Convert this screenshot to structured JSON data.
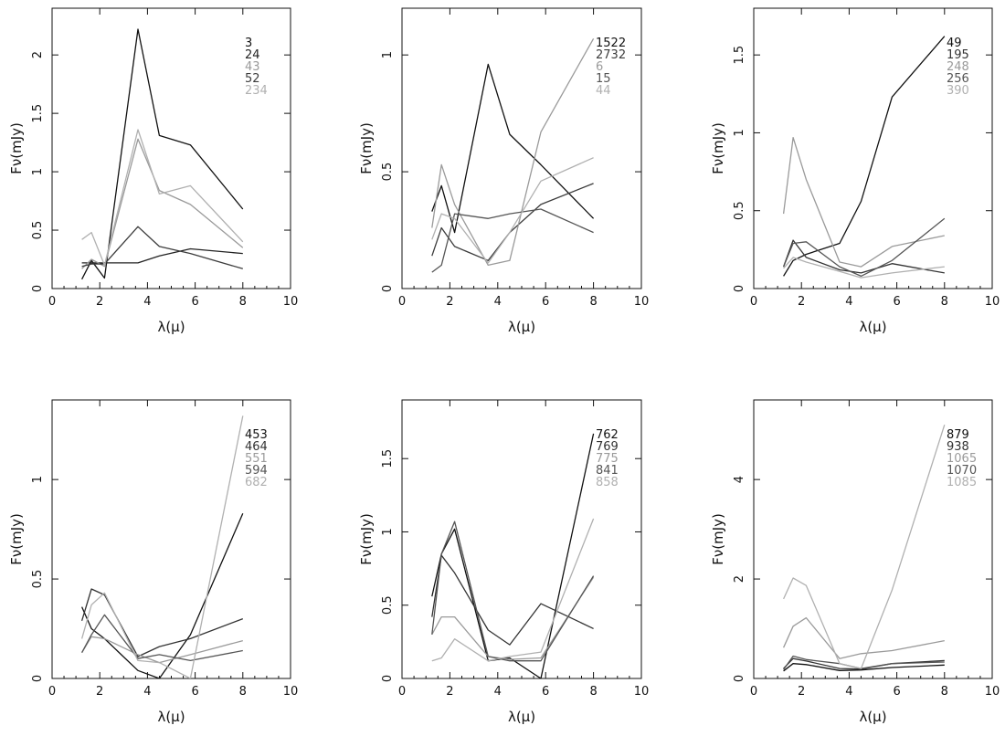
{
  "chart_data": [
    {
      "type": "line",
      "xlabel": "λ(μ)",
      "ylabel": "Fν(mJy)",
      "xlim": [
        0,
        10
      ],
      "ylim": [
        0,
        2.4
      ],
      "xticks": [
        0,
        2,
        4,
        6,
        8,
        10
      ],
      "yticks": [
        0,
        0.5,
        1,
        1.5,
        2
      ],
      "ytick_labels": [
        "0",
        "0.5",
        "1",
        "1.5",
        "2"
      ],
      "x": [
        1.25,
        1.65,
        2.2,
        3.6,
        4.5,
        5.8,
        8.0
      ],
      "series": [
        {
          "name": "3",
          "color": "#111111",
          "values": [
            0.08,
            0.24,
            0.09,
            2.22,
            1.31,
            1.23,
            0.68
          ]
        },
        {
          "name": "24",
          "color": "#222222",
          "values": [
            0.22,
            0.22,
            0.22,
            0.22,
            0.28,
            0.34,
            0.3
          ]
        },
        {
          "name": "43",
          "color": "#9a9a9a",
          "values": [
            0.17,
            0.25,
            0.19,
            1.28,
            0.84,
            0.72,
            0.35
          ]
        },
        {
          "name": "52",
          "color": "#3c3c3c",
          "values": [
            0.19,
            0.21,
            0.21,
            0.53,
            0.36,
            0.3,
            0.17
          ]
        },
        {
          "name": "234",
          "color": "#b0b0b0",
          "values": [
            0.42,
            0.48,
            0.2,
            1.36,
            0.81,
            0.88,
            0.4
          ]
        }
      ]
    },
    {
      "type": "line",
      "xlabel": "λ(μ)",
      "ylabel": "Fν(mJy)",
      "xlim": [
        0,
        10
      ],
      "ylim": [
        0,
        1.2
      ],
      "xticks": [
        0,
        2,
        4,
        6,
        8,
        10
      ],
      "yticks": [
        0,
        0.5,
        1
      ],
      "ytick_labels": [
        "0",
        "0.5",
        "1"
      ],
      "x": [
        1.25,
        1.65,
        2.2,
        3.6,
        4.5,
        5.8,
        8.0
      ],
      "series": [
        {
          "name": "1522",
          "color": "#111111",
          "values": [
            0.33,
            0.44,
            0.24,
            0.96,
            0.66,
            0.53,
            0.3
          ]
        },
        {
          "name": "2732",
          "color": "#3c3c3c",
          "values": [
            0.14,
            0.26,
            0.18,
            0.12,
            0.24,
            0.36,
            0.45
          ]
        },
        {
          "name": "6",
          "color": "#9a9a9a",
          "values": [
            0.26,
            0.53,
            0.36,
            0.1,
            0.12,
            0.67,
            1.07
          ]
        },
        {
          "name": "15",
          "color": "#555555",
          "values": [
            0.07,
            0.1,
            0.32,
            0.3,
            0.32,
            0.34,
            0.24
          ]
        },
        {
          "name": "44",
          "color": "#b0b0b0",
          "values": [
            0.21,
            0.32,
            0.3,
            0.11,
            0.24,
            0.46,
            0.56
          ]
        }
      ]
    },
    {
      "type": "line",
      "xlabel": "λ(μ)",
      "ylabel": "Fν(mJy)",
      "xlim": [
        0,
        10
      ],
      "ylim": [
        0,
        1.8
      ],
      "xticks": [
        0,
        2,
        4,
        6,
        8,
        10
      ],
      "yticks": [
        0,
        0.5,
        1,
        1.5
      ],
      "ytick_labels": [
        "0",
        "0.5",
        "1",
        "1.5"
      ],
      "x": [
        1.25,
        1.65,
        2.2,
        3.6,
        4.5,
        5.8,
        8.0
      ],
      "series": [
        {
          "name": "49",
          "color": "#111111",
          "values": [
            0.08,
            0.18,
            0.22,
            0.29,
            0.56,
            1.23,
            1.62
          ]
        },
        {
          "name": "195",
          "color": "#333333",
          "values": [
            0.14,
            0.31,
            0.2,
            0.12,
            0.1,
            0.16,
            0.1
          ]
        },
        {
          "name": "248",
          "color": "#9a9a9a",
          "values": [
            0.48,
            0.97,
            0.7,
            0.17,
            0.14,
            0.27,
            0.34
          ]
        },
        {
          "name": "256",
          "color": "#555555",
          "values": [
            0.14,
            0.29,
            0.3,
            0.14,
            0.08,
            0.18,
            0.45
          ]
        },
        {
          "name": "390",
          "color": "#b0b0b0",
          "values": [
            0.13,
            0.2,
            0.17,
            0.11,
            0.07,
            0.1,
            0.14
          ]
        }
      ]
    },
    {
      "type": "line",
      "xlabel": "λ(μ)",
      "ylabel": "Fν(mJy)",
      "xlim": [
        0,
        10
      ],
      "ylim": [
        0,
        1.4
      ],
      "xticks": [
        0,
        2,
        4,
        6,
        8,
        10
      ],
      "yticks": [
        0,
        0.5,
        1
      ],
      "ytick_labels": [
        "0",
        "0.5",
        "1"
      ],
      "x": [
        1.25,
        1.65,
        2.2,
        3.6,
        4.5,
        5.8,
        8.0
      ],
      "series": [
        {
          "name": "453",
          "color": "#111111",
          "values": [
            0.36,
            0.25,
            0.2,
            0.04,
            0.0,
            0.22,
            0.83
          ]
        },
        {
          "name": "464",
          "color": "#333333",
          "values": [
            0.29,
            0.45,
            0.42,
            0.11,
            0.16,
            0.2,
            0.3
          ]
        },
        {
          "name": "551",
          "color": "#9a9a9a",
          "values": [
            0.13,
            0.21,
            0.2,
            0.12,
            0.08,
            0.12,
            0.19
          ]
        },
        {
          "name": "594",
          "color": "#555555",
          "values": [
            0.13,
            0.22,
            0.32,
            0.1,
            0.12,
            0.09,
            0.14
          ]
        },
        {
          "name": "682",
          "color": "#b0b0b0",
          "values": [
            0.2,
            0.37,
            0.43,
            0.09,
            0.08,
            0.0,
            1.32
          ]
        }
      ]
    },
    {
      "type": "line",
      "xlabel": "λ(μ)",
      "ylabel": "Fν(mJy)",
      "xlim": [
        0,
        10
      ],
      "ylim": [
        0,
        1.9
      ],
      "xticks": [
        0,
        2,
        4,
        6,
        8,
        10
      ],
      "yticks": [
        0,
        0.5,
        1,
        1.5
      ],
      "ytick_labels": [
        "0",
        "0.5",
        "1",
        "1.5"
      ],
      "x": [
        1.25,
        1.65,
        2.2,
        3.6,
        4.5,
        5.8,
        8.0
      ],
      "series": [
        {
          "name": "762",
          "color": "#111111",
          "values": [
            0.56,
            0.85,
            1.02,
            0.12,
            0.14,
            0.0,
            1.67
          ]
        },
        {
          "name": "769",
          "color": "#333333",
          "values": [
            0.42,
            0.84,
            0.72,
            0.33,
            0.23,
            0.51,
            0.34
          ]
        },
        {
          "name": "775",
          "color": "#9a9a9a",
          "values": [
            0.3,
            0.42,
            0.42,
            0.15,
            0.13,
            0.14,
            0.69
          ]
        },
        {
          "name": "841",
          "color": "#555555",
          "values": [
            0.3,
            0.85,
            1.07,
            0.15,
            0.12,
            0.12,
            0.7
          ]
        },
        {
          "name": "858",
          "color": "#b0b0b0",
          "values": [
            0.12,
            0.14,
            0.27,
            0.12,
            0.15,
            0.18,
            1.09
          ]
        }
      ]
    },
    {
      "type": "line",
      "xlabel": "λ(μ)",
      "ylabel": "Fν(mJy)",
      "xlim": [
        0,
        10
      ],
      "ylim": [
        0,
        5.6
      ],
      "xticks": [
        0,
        2,
        4,
        6,
        8,
        10
      ],
      "yticks": [
        0,
        2,
        4
      ],
      "ytick_labels": [
        "0",
        "2",
        "4"
      ],
      "x": [
        1.25,
        1.65,
        2.2,
        3.6,
        4.5,
        5.8,
        8.0
      ],
      "series": [
        {
          "name": "879",
          "color": "#111111",
          "values": [
            0.15,
            0.3,
            0.28,
            0.16,
            0.17,
            0.22,
            0.27
          ]
        },
        {
          "name": "938",
          "color": "#333333",
          "values": [
            0.2,
            0.4,
            0.35,
            0.2,
            0.19,
            0.3,
            0.36
          ]
        },
        {
          "name": "1065",
          "color": "#9a9a9a",
          "values": [
            0.62,
            1.05,
            1.22,
            0.4,
            0.5,
            0.56,
            0.76
          ]
        },
        {
          "name": "1070",
          "color": "#555555",
          "values": [
            0.18,
            0.45,
            0.38,
            0.3,
            0.2,
            0.3,
            0.33
          ]
        },
        {
          "name": "1085",
          "color": "#b0b0b0",
          "values": [
            1.6,
            2.02,
            1.87,
            0.3,
            0.2,
            1.78,
            5.1
          ]
        }
      ]
    }
  ]
}
